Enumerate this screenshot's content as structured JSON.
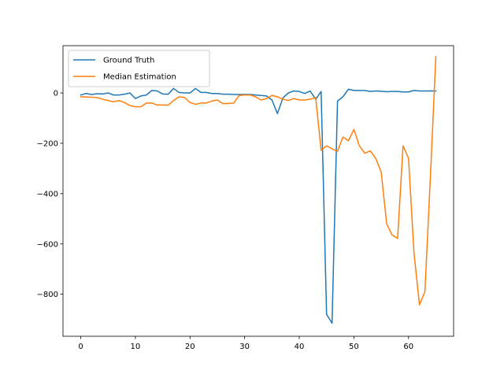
{
  "chart_data": {
    "type": "line",
    "title": "",
    "xlabel": "",
    "ylabel": "",
    "xlim": [
      -3.25,
      68.25
    ],
    "ylim": [
      -967,
      188
    ],
    "xticks": [
      0,
      10,
      20,
      30,
      40,
      50,
      60
    ],
    "yticks": [
      -800,
      -600,
      -400,
      -200,
      0
    ],
    "grid": false,
    "legend": "upper-left",
    "series": [
      {
        "name": "Ground Truth",
        "color": "#1f77b4",
        "x": [
          0,
          1,
          2,
          3,
          4,
          5,
          6,
          7,
          8,
          9,
          10,
          11,
          12,
          13,
          14,
          15,
          16,
          17,
          18,
          19,
          20,
          21,
          22,
          23,
          24,
          25,
          26,
          27,
          28,
          29,
          30,
          31,
          32,
          33,
          34,
          35,
          36,
          37,
          38,
          39,
          40,
          41,
          42,
          43,
          44,
          45,
          46,
          47,
          48,
          49,
          50,
          51,
          52,
          53,
          54,
          55,
          56,
          57,
          58,
          59,
          60,
          61,
          62,
          63,
          64,
          65
        ],
        "y": [
          -8,
          -2,
          -6,
          -3,
          -4,
          0,
          -8,
          -8,
          -5,
          0,
          -22,
          -12,
          -8,
          10,
          8,
          -4,
          -5,
          18,
          2,
          0,
          0,
          18,
          2,
          2,
          -2,
          -2,
          -5,
          -5,
          -6,
          -6,
          -6,
          -6,
          -8,
          -10,
          -12,
          -28,
          -82,
          -20,
          0,
          8,
          6,
          -2,
          8,
          -25,
          6,
          -880,
          -915,
          -32,
          -15,
          15,
          10,
          10,
          10,
          6,
          8,
          7,
          5,
          6,
          6,
          4,
          4,
          10,
          8,
          8,
          8,
          8
        ]
      },
      {
        "name": "Median Estimation",
        "color": "#ff7f0e",
        "x": [
          0,
          1,
          2,
          3,
          4,
          5,
          6,
          7,
          8,
          9,
          10,
          11,
          12,
          13,
          14,
          15,
          16,
          17,
          18,
          19,
          20,
          21,
          22,
          23,
          24,
          25,
          26,
          27,
          28,
          29,
          30,
          31,
          32,
          33,
          34,
          35,
          36,
          37,
          38,
          39,
          40,
          41,
          42,
          43,
          44,
          45,
          46,
          47,
          48,
          49,
          50,
          51,
          52,
          53,
          54,
          55,
          56,
          57,
          58,
          59,
          60,
          61,
          62,
          63,
          64,
          65
        ],
        "y": [
          -15,
          -16,
          -17,
          -18,
          -25,
          -30,
          -35,
          -30,
          -38,
          -50,
          -55,
          -55,
          -40,
          -40,
          -48,
          -48,
          -48,
          -30,
          -15,
          -18,
          -38,
          -45,
          -40,
          -40,
          -32,
          -28,
          -42,
          -42,
          -40,
          -10,
          -8,
          -8,
          -15,
          -28,
          -22,
          -10,
          -15,
          -25,
          -30,
          -22,
          -28,
          -28,
          -25,
          -18,
          -228,
          -210,
          -222,
          -232,
          -175,
          -190,
          -145,
          -210,
          -240,
          -230,
          -260,
          -315,
          -520,
          -565,
          -578,
          -210,
          -260,
          -635,
          -842,
          -790,
          -335,
          145
        ]
      }
    ]
  }
}
